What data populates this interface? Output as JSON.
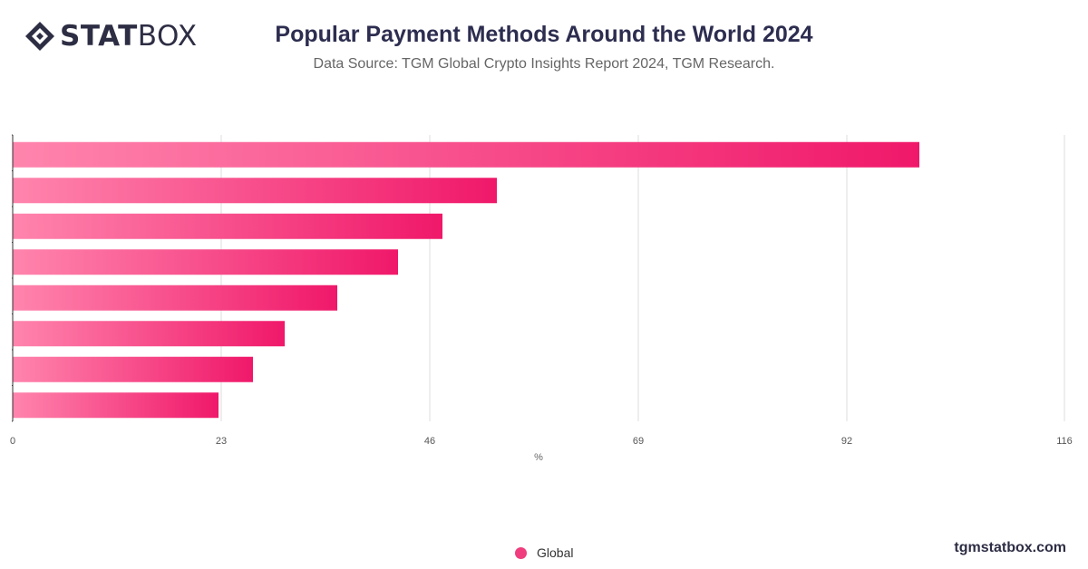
{
  "brand": {
    "logo_bold": "STAT",
    "logo_light": "BOX",
    "footer_url": "tgmstatbox.com"
  },
  "colors": {
    "bar_light": "#ff85ad",
    "bar_dark": "#f0186a",
    "grid": "#dddddd",
    "axis": "#333333"
  },
  "chart_data": {
    "type": "bar",
    "orientation": "horizontal",
    "title": "Popular Payment Methods Around the World 2024",
    "subtitle": "Data Source: TGM Global Crypto Insights Report 2024, TGM Research.",
    "xlabel": "%",
    "ylabel": "",
    "xlim": [
      0,
      116
    ],
    "xticks": [
      0,
      23,
      46,
      69,
      92,
      116
    ],
    "grid": true,
    "legend_position": "bottom",
    "series": [
      {
        "name": "Global",
        "values": [
          100,
          53.4,
          47.4,
          42.5,
          35.8,
          30.0,
          26.5,
          22.7
        ]
      }
    ]
  }
}
